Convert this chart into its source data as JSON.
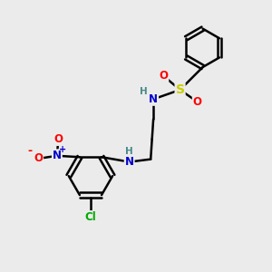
{
  "bg_color": "#ebebeb",
  "bond_color": "#000000",
  "bond_width": 1.8,
  "atom_colors": {
    "N": "#0000cc",
    "O": "#ff0000",
    "S": "#cccc00",
    "Cl": "#00aa00",
    "H": "#4a8a8a",
    "C": "#000000"
  },
  "fs": 8.5
}
